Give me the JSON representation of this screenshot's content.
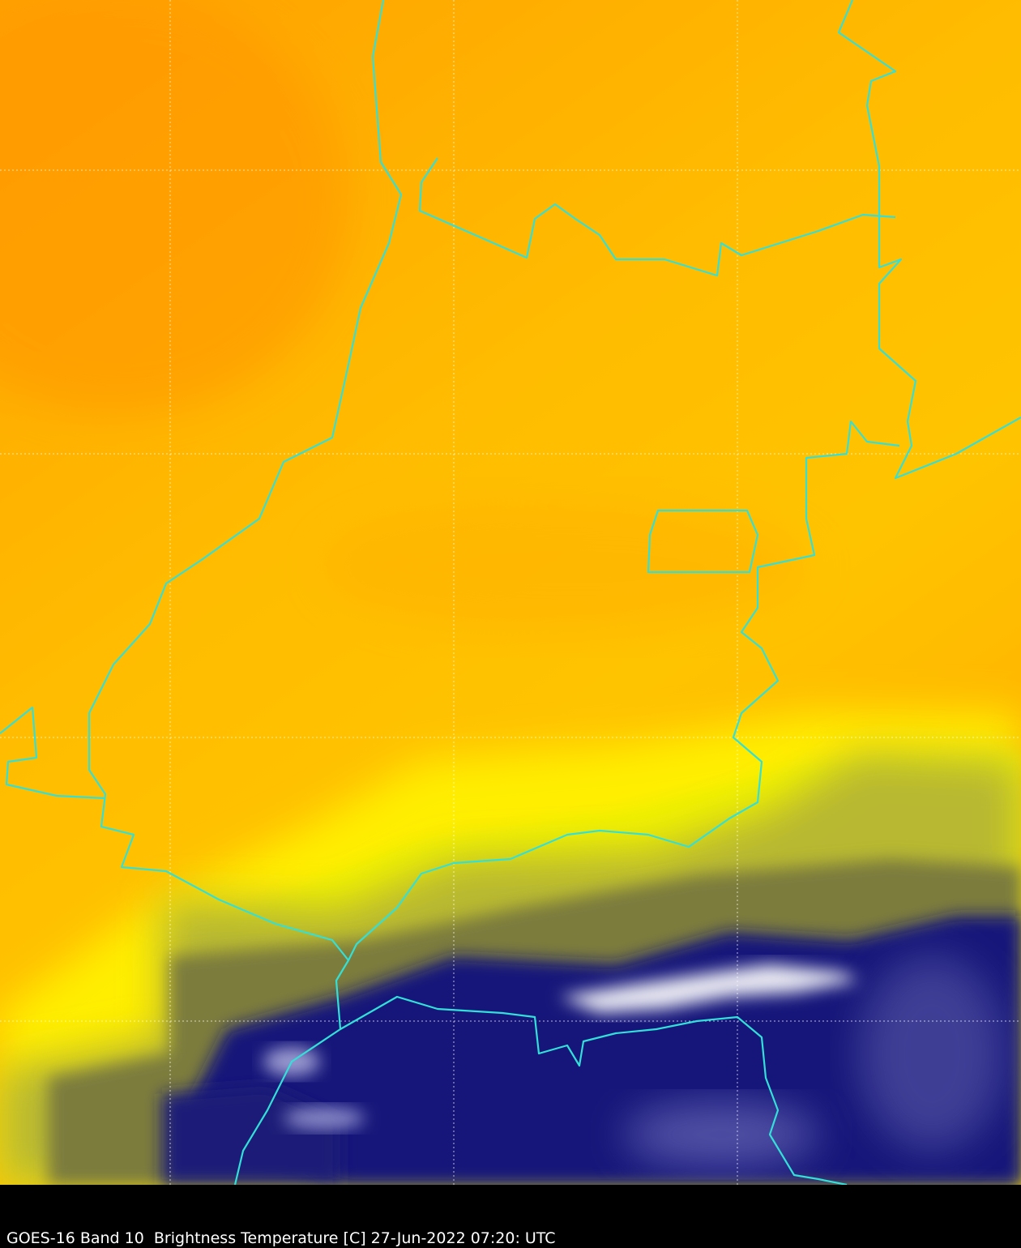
{
  "caption": "GOES-16 Band 10  Brightness Temperature [C] 27-Jun-2022 07:20: UTC"
}
